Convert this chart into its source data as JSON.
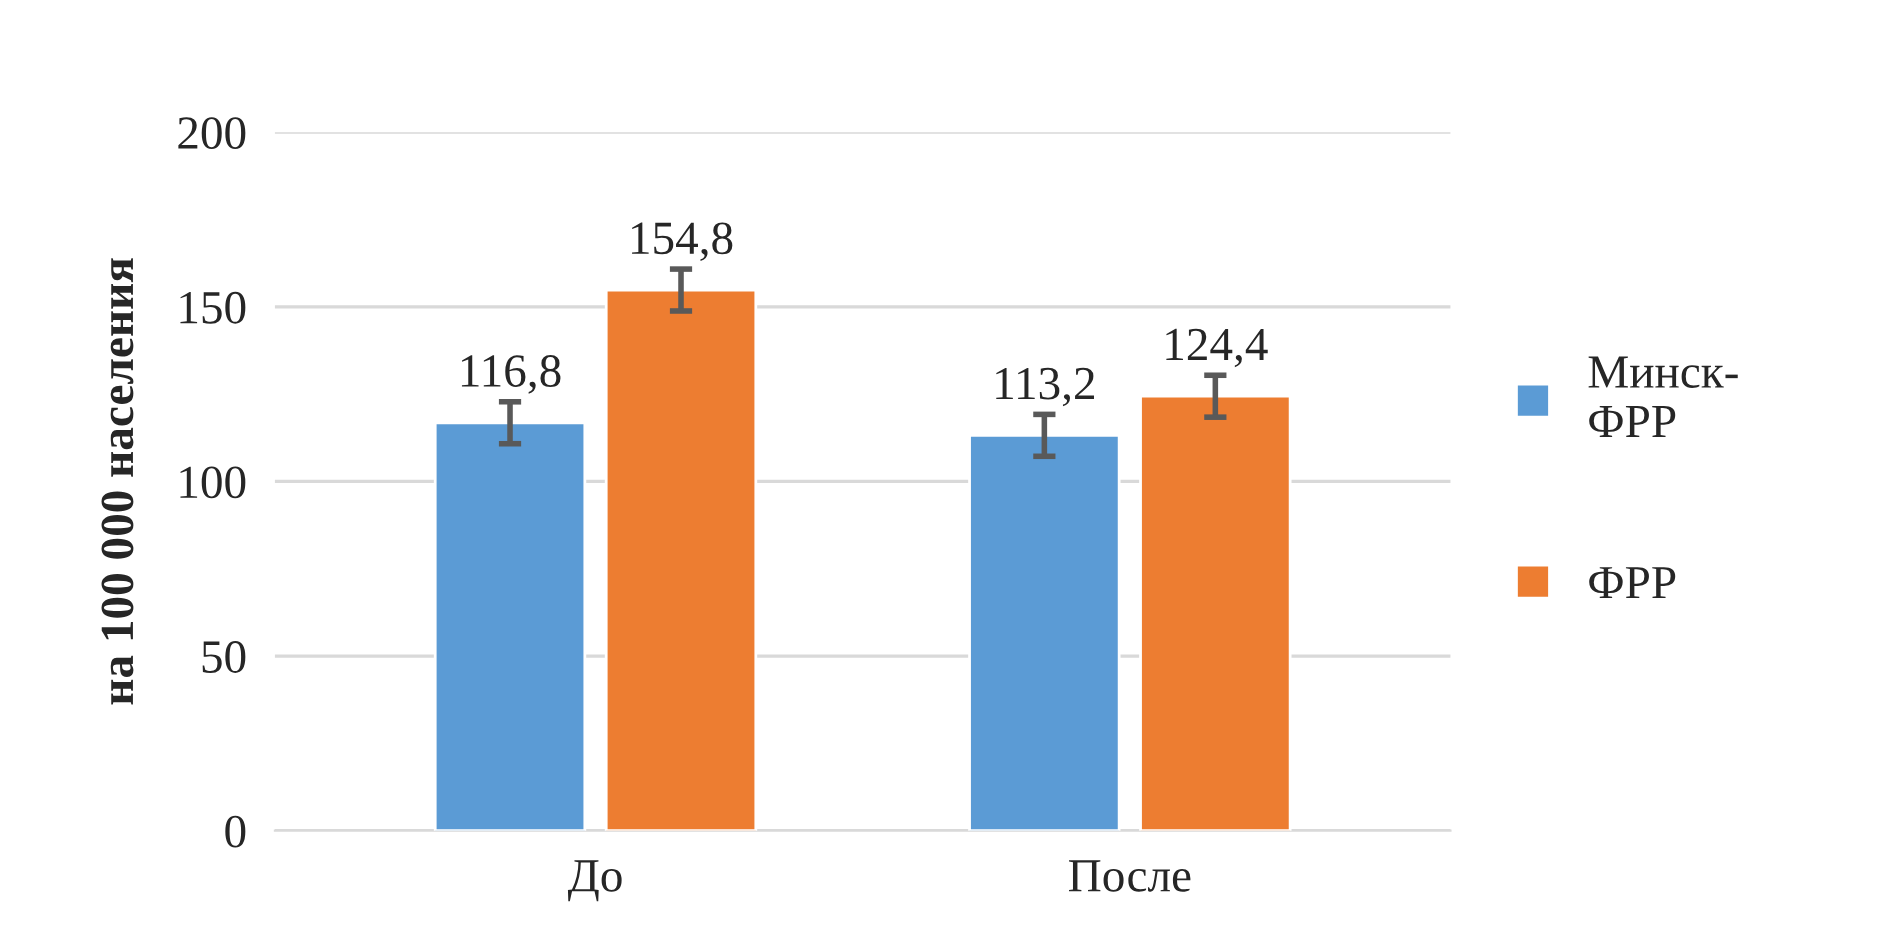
{
  "chart_data": {
    "type": "bar",
    "ylabel": "на 100 000 населения",
    "categories": [
      "До",
      "После"
    ],
    "series": [
      {
        "name": "Минск-ФРР",
        "color": "#5b9bd5",
        "values": [
          116.8,
          113.2
        ],
        "errors": [
          6,
          6
        ],
        "value_labels": [
          "116,8",
          "113,2"
        ]
      },
      {
        "name": "ФРР",
        "color": "#ed7d31",
        "values": [
          154.8,
          124.4
        ],
        "errors": [
          6,
          6
        ],
        "value_labels": [
          "154,8",
          "124,4"
        ]
      }
    ],
    "ylim": [
      0,
      200
    ],
    "yticks": [
      0,
      50,
      100,
      150,
      200
    ],
    "grid": "y",
    "legend": "right"
  }
}
